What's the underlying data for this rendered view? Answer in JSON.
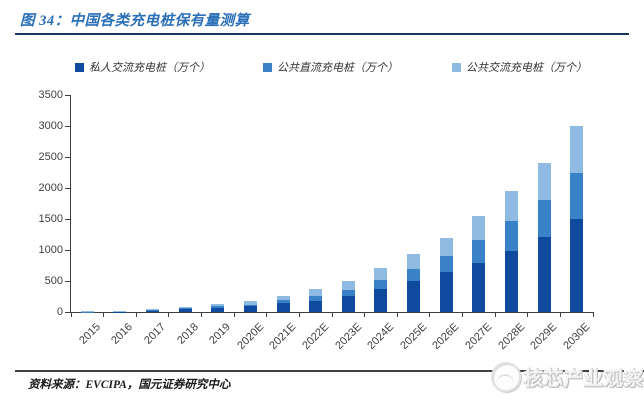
{
  "figure": {
    "title": "图 34：中国各类充电桩保有量测算",
    "source_note": "资料来源：EVCIPA，国元证券研究中心",
    "watermark_text": "核芯产业观察"
  },
  "colors": {
    "title_blue": "#2B70B8",
    "title_rule": "#17375E",
    "axis": "#404040",
    "series_private_ac": "#0F4A9E",
    "series_public_dc": "#3A82C8",
    "series_public_ac": "#8FBBE3"
  },
  "chart_data": {
    "type": "bar",
    "stacked": true,
    "title": "中国各类充电桩保有量测算",
    "xlabel": "",
    "ylabel": "",
    "ylim": [
      0,
      3500
    ],
    "yticks": [
      0,
      500,
      1000,
      1500,
      2000,
      2500,
      3000,
      3500
    ],
    "grid": false,
    "legend_position": "top",
    "categories": [
      "2015",
      "2016",
      "2017",
      "2018",
      "2019",
      "2020E",
      "2021E",
      "2022E",
      "2023E",
      "2024E",
      "2025E",
      "2026E",
      "2027E",
      "2028E",
      "2029E",
      "2030E"
    ],
    "series": [
      {
        "name": "私人交流充电桩（万个）",
        "color": "#0F4A9E",
        "values": [
          1,
          6,
          23,
          48,
          70,
          90,
          145,
          185,
          260,
          375,
          495,
          640,
          790,
          990,
          1210,
          1500
        ]
      },
      {
        "name": "公共直流充电桩（万个）",
        "color": "#3A82C8",
        "values": [
          4,
          4,
          6,
          12,
          22,
          31,
          48,
          75,
          100,
          140,
          200,
          270,
          370,
          475,
          590,
          750
        ]
      },
      {
        "name": "公共交流充电桩（万个）",
        "color": "#8FBBE3",
        "values": [
          10,
          10,
          15,
          19,
          30,
          51,
          65,
          105,
          145,
          195,
          240,
          290,
          390,
          480,
          600,
          750
        ]
      }
    ],
    "totals": [
      15,
      20,
      44,
      79,
      122,
      172,
      258,
      365,
      505,
      710,
      935,
      1200,
      1550,
      1945,
      2400,
      3000
    ]
  }
}
